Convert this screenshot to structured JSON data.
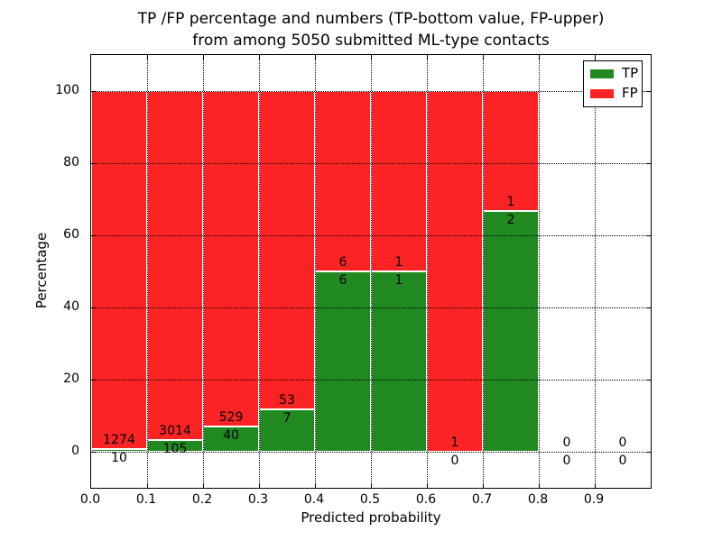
{
  "title": {
    "line1": "TP /FP percentage and numbers (TP-bottom value, FP-upper)",
    "line2": "from among 5050 submitted ML-type contacts"
  },
  "axes": {
    "xlabel": "Predicted probability",
    "ylabel": "Percentage",
    "x_tick_labels": [
      "0.0",
      "0.1",
      "0.2",
      "0.3",
      "0.4",
      "0.5",
      "0.6",
      "0.7",
      "0.8",
      "0.9"
    ],
    "y_tick_labels": [
      "0",
      "20",
      "40",
      "60",
      "80",
      "100"
    ],
    "y_tick_values": [
      0,
      20,
      40,
      60,
      80,
      100
    ]
  },
  "legend": {
    "items": [
      {
        "label": "TP",
        "color": "#208a20"
      },
      {
        "label": "FP",
        "color": "#fb2323"
      }
    ]
  },
  "chart_data": {
    "type": "bar",
    "variant": "stacked-percentage-histogram",
    "title": "TP /FP percentage and numbers (TP-bottom value, FP-upper) from among 5050 submitted ML-type contacts",
    "xlabel": "Predicted probability",
    "ylabel": "Percentage",
    "bin_edges": [
      0.0,
      0.1,
      0.2,
      0.3,
      0.4,
      0.5,
      0.6,
      0.7,
      0.8,
      0.9,
      1.0
    ],
    "series": [
      {
        "name": "TP",
        "color": "#208a20",
        "counts": [
          10,
          105,
          40,
          7,
          6,
          1,
          0,
          2,
          0,
          0
        ]
      },
      {
        "name": "FP",
        "color": "#fb2323",
        "counts": [
          1274,
          3014,
          529,
          53,
          6,
          1,
          1,
          1,
          0,
          0
        ]
      }
    ],
    "tp_percent_of_bin": [
      0.78,
      3.37,
      7.03,
      11.67,
      50.0,
      50.0,
      0.0,
      66.67,
      null,
      null
    ],
    "total_contacts": 5050,
    "xlim": [
      0.0,
      1.0
    ],
    "ylim": [
      -10,
      110
    ],
    "grid": {
      "style": "dotted",
      "x": true,
      "y": true
    },
    "legend_position": "upper right"
  },
  "colors": {
    "tp_green": "#208a20",
    "fp_red": "#fb2323",
    "background": "#ffffff",
    "grid": "#000000",
    "text": "#000000"
  }
}
